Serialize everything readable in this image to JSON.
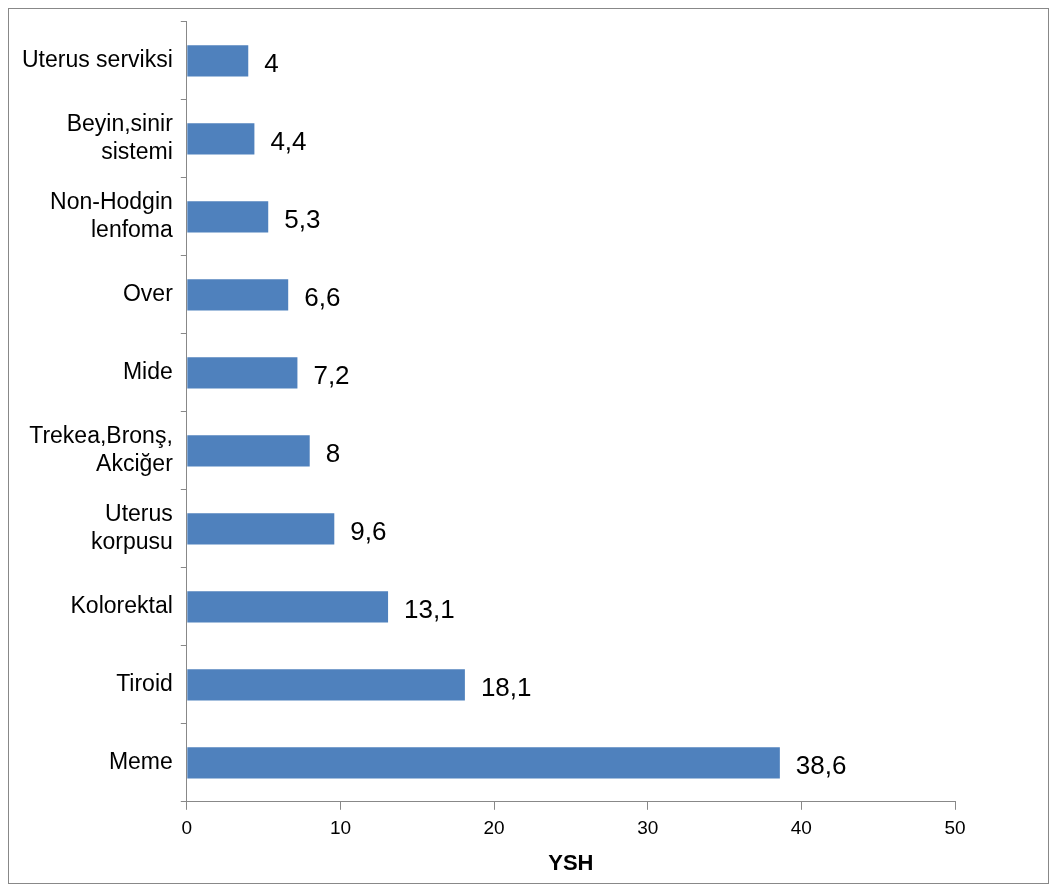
{
  "chart_data": {
    "type": "bar",
    "orientation": "horizontal",
    "xlabel": "YSH",
    "categories": [
      "Uterus serviksi",
      "Beyin,sinir\nsistemi",
      "Non-Hodgin\nlenfoma",
      "Over",
      "Mide",
      "Trekea,Bronş,\nAkciğer",
      "Uterus\nkorpusu",
      "Kolorektal",
      "Tiroid",
      "Meme"
    ],
    "values": [
      4,
      4.4,
      5.3,
      6.6,
      7.2,
      8,
      9.6,
      13.1,
      18.1,
      38.6
    ],
    "value_labels": [
      "4",
      "4,4",
      "5,3",
      "6,6",
      "7,2",
      "8",
      "9,6",
      "13,1",
      "18,1",
      "38,6"
    ],
    "color": "#4f81bd",
    "xlim": [
      0,
      50
    ],
    "xticks": [
      0,
      10,
      20,
      30,
      40,
      50
    ],
    "grid": false,
    "legend": false
  }
}
